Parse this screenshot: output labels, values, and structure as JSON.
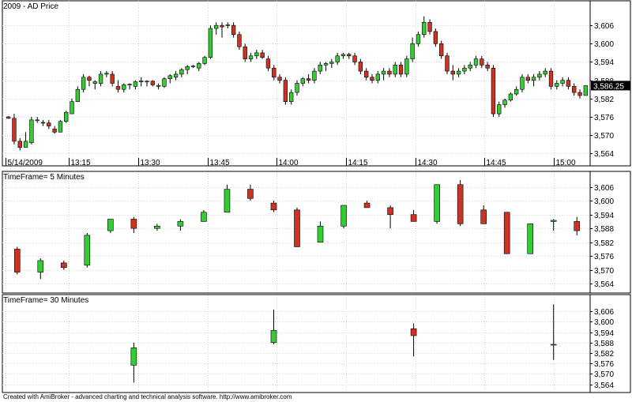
{
  "chart_data": [
    {
      "type": "candlestick",
      "title": "2009 - AD Price",
      "x_labels": [
        "5/14/2009",
        "13:15",
        "13:30",
        "13:45",
        "14:00",
        "14:15",
        "14:30",
        "14:45",
        "15:00"
      ],
      "ylim": [
        3562,
        3612
      ],
      "yticks": [
        3564,
        3570,
        3576,
        3582,
        3588,
        3594,
        3600,
        3606
      ],
      "ytick_labels": [
        "3,564",
        "3,570",
        "3,576",
        "3,582",
        "3,588",
        "3,594",
        "3,600",
        "3,606"
      ],
      "last_price_label": "3,586.25",
      "last_price": 3586.25,
      "candles": [
        {
          "o": 3576,
          "h": 3576.2,
          "l": 3575.4,
          "c": 3575.5
        },
        {
          "o": 3575.5,
          "h": 3577,
          "l": 3567,
          "c": 3568
        },
        {
          "o": 3568,
          "h": 3569,
          "l": 3565,
          "c": 3566
        },
        {
          "o": 3566,
          "h": 3571,
          "l": 3566,
          "c": 3568
        },
        {
          "o": 3567.5,
          "h": 3576,
          "l": 3567,
          "c": 3575
        },
        {
          "o": 3575,
          "h": 3576,
          "l": 3574,
          "c": 3575
        },
        {
          "o": 3574,
          "h": 3575,
          "l": 3573,
          "c": 3574.2
        },
        {
          "o": 3574,
          "h": 3575,
          "l": 3572,
          "c": 3573
        },
        {
          "o": 3572,
          "h": 3573,
          "l": 3570.5,
          "c": 3571
        },
        {
          "o": 3571,
          "h": 3575,
          "l": 3571,
          "c": 3574.5
        },
        {
          "o": 3574.5,
          "h": 3578,
          "l": 3574,
          "c": 3577.5
        },
        {
          "o": 3577,
          "h": 3582,
          "l": 3577,
          "c": 3581
        },
        {
          "o": 3581,
          "h": 3586,
          "l": 3581,
          "c": 3585
        },
        {
          "o": 3585,
          "h": 3590,
          "l": 3584,
          "c": 3589
        },
        {
          "o": 3589,
          "h": 3589.5,
          "l": 3586,
          "c": 3588
        },
        {
          "o": 3587,
          "h": 3588,
          "l": 3585,
          "c": 3587.5
        },
        {
          "o": 3587,
          "h": 3591,
          "l": 3586,
          "c": 3590
        },
        {
          "o": 3590,
          "h": 3591,
          "l": 3589,
          "c": 3590.3
        },
        {
          "o": 3590,
          "h": 3591,
          "l": 3586,
          "c": 3587
        },
        {
          "o": 3586,
          "h": 3588,
          "l": 3584,
          "c": 3585
        },
        {
          "o": 3585,
          "h": 3587,
          "l": 3584,
          "c": 3586.5
        },
        {
          "o": 3586.5,
          "h": 3587,
          "l": 3585,
          "c": 3586.7
        },
        {
          "o": 3586,
          "h": 3588,
          "l": 3585,
          "c": 3587.5
        },
        {
          "o": 3587.5,
          "h": 3589,
          "l": 3586,
          "c": 3587.8
        },
        {
          "o": 3587.5,
          "h": 3588,
          "l": 3586,
          "c": 3587.7
        },
        {
          "o": 3587.7,
          "h": 3588,
          "l": 3586,
          "c": 3586.5
        },
        {
          "o": 3586,
          "h": 3587,
          "l": 3585,
          "c": 3586.3
        },
        {
          "o": 3586,
          "h": 3589,
          "l": 3585.5,
          "c": 3588.5
        },
        {
          "o": 3588.5,
          "h": 3590,
          "l": 3587,
          "c": 3589.5
        },
        {
          "o": 3589,
          "h": 3591,
          "l": 3588,
          "c": 3590
        },
        {
          "o": 3590,
          "h": 3592,
          "l": 3589,
          "c": 3591.5
        },
        {
          "o": 3591.5,
          "h": 3593,
          "l": 3590,
          "c": 3592.5
        },
        {
          "o": 3592.5,
          "h": 3593,
          "l": 3592,
          "c": 3592.7
        },
        {
          "o": 3592,
          "h": 3594,
          "l": 3591,
          "c": 3593.5
        },
        {
          "o": 3593.5,
          "h": 3596,
          "l": 3593,
          "c": 3595.5
        },
        {
          "o": 3595.5,
          "h": 3606,
          "l": 3595,
          "c": 3605
        },
        {
          "o": 3605,
          "h": 3607,
          "l": 3603,
          "c": 3606
        },
        {
          "o": 3606,
          "h": 3607,
          "l": 3602,
          "c": 3605.5
        },
        {
          "o": 3606,
          "h": 3607,
          "l": 3605,
          "c": 3606.2
        },
        {
          "o": 3606,
          "h": 3607,
          "l": 3602,
          "c": 3603
        },
        {
          "o": 3603,
          "h": 3604,
          "l": 3598,
          "c": 3599
        },
        {
          "o": 3599,
          "h": 3600,
          "l": 3594,
          "c": 3595
        },
        {
          "o": 3595,
          "h": 3597,
          "l": 3594,
          "c": 3596
        },
        {
          "o": 3596,
          "h": 3598,
          "l": 3595,
          "c": 3597
        },
        {
          "o": 3597,
          "h": 3598,
          "l": 3595,
          "c": 3595.5
        },
        {
          "o": 3595,
          "h": 3596,
          "l": 3591,
          "c": 3592
        },
        {
          "o": 3592,
          "h": 3593,
          "l": 3588,
          "c": 3589
        },
        {
          "o": 3589,
          "h": 3590,
          "l": 3587,
          "c": 3588
        },
        {
          "o": 3588,
          "h": 3589,
          "l": 3580,
          "c": 3581
        },
        {
          "o": 3581,
          "h": 3585,
          "l": 3580,
          "c": 3584
        },
        {
          "o": 3584,
          "h": 3588,
          "l": 3583,
          "c": 3587
        },
        {
          "o": 3587,
          "h": 3589,
          "l": 3586,
          "c": 3588.5
        },
        {
          "o": 3588.5,
          "h": 3590,
          "l": 3587,
          "c": 3588
        },
        {
          "o": 3588,
          "h": 3592,
          "l": 3587,
          "c": 3591
        },
        {
          "o": 3591,
          "h": 3594,
          "l": 3590,
          "c": 3593
        },
        {
          "o": 3593,
          "h": 3594,
          "l": 3591,
          "c": 3593.5
        },
        {
          "o": 3593.5,
          "h": 3595,
          "l": 3592,
          "c": 3594
        },
        {
          "o": 3594,
          "h": 3597,
          "l": 3593,
          "c": 3596
        },
        {
          "o": 3596,
          "h": 3597,
          "l": 3595,
          "c": 3596.5
        },
        {
          "o": 3596.5,
          "h": 3597,
          "l": 3595,
          "c": 3596
        },
        {
          "o": 3596,
          "h": 3597,
          "l": 3593,
          "c": 3594
        },
        {
          "o": 3594,
          "h": 3595,
          "l": 3590,
          "c": 3591
        },
        {
          "o": 3591,
          "h": 3592,
          "l": 3588,
          "c": 3589
        },
        {
          "o": 3589,
          "h": 3590,
          "l": 3587,
          "c": 3588
        },
        {
          "o": 3588,
          "h": 3591,
          "l": 3587,
          "c": 3590
        },
        {
          "o": 3590,
          "h": 3592,
          "l": 3588,
          "c": 3591
        },
        {
          "o": 3591,
          "h": 3592,
          "l": 3589,
          "c": 3590
        },
        {
          "o": 3590,
          "h": 3594,
          "l": 3589,
          "c": 3593
        },
        {
          "o": 3593,
          "h": 3594,
          "l": 3589,
          "c": 3590
        },
        {
          "o": 3590,
          "h": 3596,
          "l": 3589,
          "c": 3595
        },
        {
          "o": 3595,
          "h": 3602,
          "l": 3594,
          "c": 3600
        },
        {
          "o": 3600,
          "h": 3604,
          "l": 3599,
          "c": 3603
        },
        {
          "o": 3603,
          "h": 3609,
          "l": 3602,
          "c": 3607
        },
        {
          "o": 3607,
          "h": 3608,
          "l": 3603,
          "c": 3604
        },
        {
          "o": 3604,
          "h": 3605,
          "l": 3599,
          "c": 3600
        },
        {
          "o": 3600,
          "h": 3601,
          "l": 3595,
          "c": 3596
        },
        {
          "o": 3596,
          "h": 3597,
          "l": 3590,
          "c": 3591
        },
        {
          "o": 3591,
          "h": 3593,
          "l": 3588,
          "c": 3590
        },
        {
          "o": 3590,
          "h": 3592,
          "l": 3589,
          "c": 3591
        },
        {
          "o": 3591,
          "h": 3593,
          "l": 3590,
          "c": 3592
        },
        {
          "o": 3592,
          "h": 3594,
          "l": 3591,
          "c": 3593
        },
        {
          "o": 3593,
          "h": 3596,
          "l": 3592,
          "c": 3595
        },
        {
          "o": 3595,
          "h": 3596,
          "l": 3592,
          "c": 3593
        },
        {
          "o": 3593,
          "h": 3594,
          "l": 3591,
          "c": 3592
        },
        {
          "o": 3592,
          "h": 3593,
          "l": 3576,
          "c": 3577
        },
        {
          "o": 3577,
          "h": 3581,
          "l": 3576,
          "c": 3580
        },
        {
          "o": 3580,
          "h": 3582,
          "l": 3579,
          "c": 3581.5
        },
        {
          "o": 3581.5,
          "h": 3584,
          "l": 3581,
          "c": 3583.5
        },
        {
          "o": 3583.5,
          "h": 3586,
          "l": 3583,
          "c": 3585
        },
        {
          "o": 3585,
          "h": 3590,
          "l": 3584,
          "c": 3589
        },
        {
          "o": 3589,
          "h": 3590,
          "l": 3587,
          "c": 3588
        },
        {
          "o": 3588,
          "h": 3590,
          "l": 3586,
          "c": 3589
        },
        {
          "o": 3589,
          "h": 3591,
          "l": 3588,
          "c": 3590
        },
        {
          "o": 3590,
          "h": 3592,
          "l": 3589,
          "c": 3591
        },
        {
          "o": 3591,
          "h": 3592,
          "l": 3585,
          "c": 3586
        },
        {
          "o": 3586,
          "h": 3588,
          "l": 3585,
          "c": 3587
        },
        {
          "o": 3587,
          "h": 3589,
          "l": 3586,
          "c": 3588
        },
        {
          "o": 3588,
          "h": 3589,
          "l": 3585,
          "c": 3586
        },
        {
          "o": 3586,
          "h": 3587,
          "l": 3583,
          "c": 3584
        },
        {
          "o": 3584,
          "h": 3585,
          "l": 3582,
          "c": 3583
        },
        {
          "o": 3583,
          "h": 3586,
          "l": 3583,
          "c": 3586.25
        }
      ],
      "xtick_candle_index": [
        0,
        11,
        23,
        35,
        47,
        59,
        71,
        83,
        95
      ]
    },
    {
      "type": "candlestick",
      "title": "TimeFrame= 5 Minutes",
      "ylim": [
        3562,
        3610
      ],
      "yticks": [
        3564,
        3570,
        3576,
        3582,
        3588,
        3594,
        3600,
        3606
      ],
      "ytick_labels": [
        "3,564",
        "3,570",
        "3,576",
        "3,582",
        "3,588",
        "3,594",
        "3,600",
        "3,606"
      ],
      "candles": [
        {
          "o": 3579,
          "h": 3580,
          "l": 3568,
          "c": 3569
        },
        {
          "o": 3569,
          "h": 3575,
          "l": 3566,
          "c": 3574
        },
        {
          "o": 3573,
          "h": 3574,
          "l": 3570,
          "c": 3571
        },
        {
          "o": 3572,
          "h": 3586,
          "l": 3571,
          "c": 3585
        },
        {
          "o": 3587,
          "h": 3592,
          "l": 3586,
          "c": 3592
        },
        {
          "o": 3592,
          "h": 3593,
          "l": 3586,
          "c": 3588
        },
        {
          "o": 3588,
          "h": 3590,
          "l": 3587,
          "c": 3589
        },
        {
          "o": 3589,
          "h": 3592,
          "l": 3587,
          "c": 3591
        },
        {
          "o": 3591,
          "h": 3596,
          "l": 3591,
          "c": 3595
        },
        {
          "o": 3595,
          "h": 3607,
          "l": 3595,
          "c": 3605
        },
        {
          "o": 3605,
          "h": 3607,
          "l": 3600,
          "c": 3601
        },
        {
          "o": 3599,
          "h": 3600,
          "l": 3595,
          "c": 3596
        },
        {
          "o": 3596,
          "h": 3597,
          "l": 3580,
          "c": 3580
        },
        {
          "o": 3582,
          "h": 3591,
          "l": 3582,
          "c": 3589
        },
        {
          "o": 3589,
          "h": 3598,
          "l": 3588,
          "c": 3598
        },
        {
          "o": 3599,
          "h": 3600,
          "l": 3597,
          "c": 3597
        },
        {
          "o": 3597,
          "h": 3598,
          "l": 3588,
          "c": 3594
        },
        {
          "o": 3594,
          "h": 3596,
          "l": 3591,
          "c": 3591
        },
        {
          "o": 3591,
          "h": 3607,
          "l": 3590,
          "c": 3607
        },
        {
          "o": 3607,
          "h": 3609,
          "l": 3589,
          "c": 3590
        },
        {
          "o": 3596,
          "h": 3598,
          "l": 3590,
          "c": 3590
        },
        {
          "o": 3595,
          "h": 3595,
          "l": 3577,
          "c": 3577
        },
        {
          "o": 3577,
          "h": 3590,
          "l": 3577,
          "c": 3590
        },
        {
          "o": 3591,
          "h": 3592,
          "l": 3587,
          "c": 3591.5
        },
        {
          "o": 3591,
          "h": 3593,
          "l": 3585,
          "c": 3587
        }
      ]
    },
    {
      "type": "candlestick",
      "title": "TimeFrame= 30 Minutes",
      "ylim": [
        3562,
        3612
      ],
      "yticks": [
        3564,
        3570,
        3576,
        3582,
        3588,
        3594,
        3600,
        3606
      ],
      "ytick_labels": [
        "3,564",
        "3,570",
        "3,576",
        "3,582",
        "3,588",
        "3,594",
        "3,600",
        "3,606"
      ],
      "candles": [
        {
          "o": 3575,
          "h": 3588,
          "l": 3565,
          "c": 3585
        },
        {
          "o": 3588,
          "h": 3607,
          "l": 3587,
          "c": 3595
        },
        {
          "o": 3596,
          "h": 3599,
          "l": 3580,
          "c": 3592
        },
        {
          "o": 3587,
          "h": 3610,
          "l": 3578,
          "c": 3587
        }
      ],
      "slots": [
        5,
        11,
        17,
        23
      ]
    }
  ],
  "colors": {
    "up": "#33cc33",
    "down": "#cc3322",
    "grid": "#d4d4d4",
    "axis": "#000000"
  },
  "footer": "Created with AmiBroker - advanced charting and technical analysis software. http://www.amibroker.com"
}
